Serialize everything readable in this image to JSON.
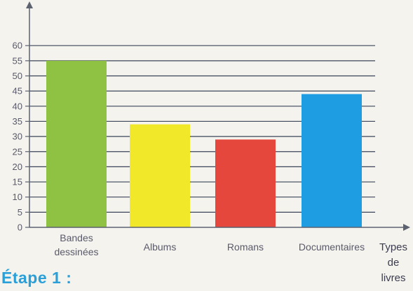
{
  "chart_data": {
    "type": "bar",
    "categories": [
      [
        "Bandes",
        "dessinées"
      ],
      [
        "Albums"
      ],
      [
        "Romans"
      ],
      [
        "Documentaires"
      ]
    ],
    "values": [
      55,
      34,
      29,
      44
    ],
    "colors": [
      "#8fc142",
      "#f2e82a",
      "#e5473d",
      "#1f9de2"
    ],
    "x_axis_title": [
      "Types",
      "de",
      "livres"
    ],
    "ylim": [
      0,
      60
    ],
    "yticks": [
      0,
      5,
      10,
      15,
      20,
      25,
      30,
      35,
      40,
      45,
      50,
      55,
      60
    ],
    "grid": true,
    "axis_color": "#5c6270",
    "grid_color": "#3b4458"
  },
  "section_heading": "Étape 1 :"
}
